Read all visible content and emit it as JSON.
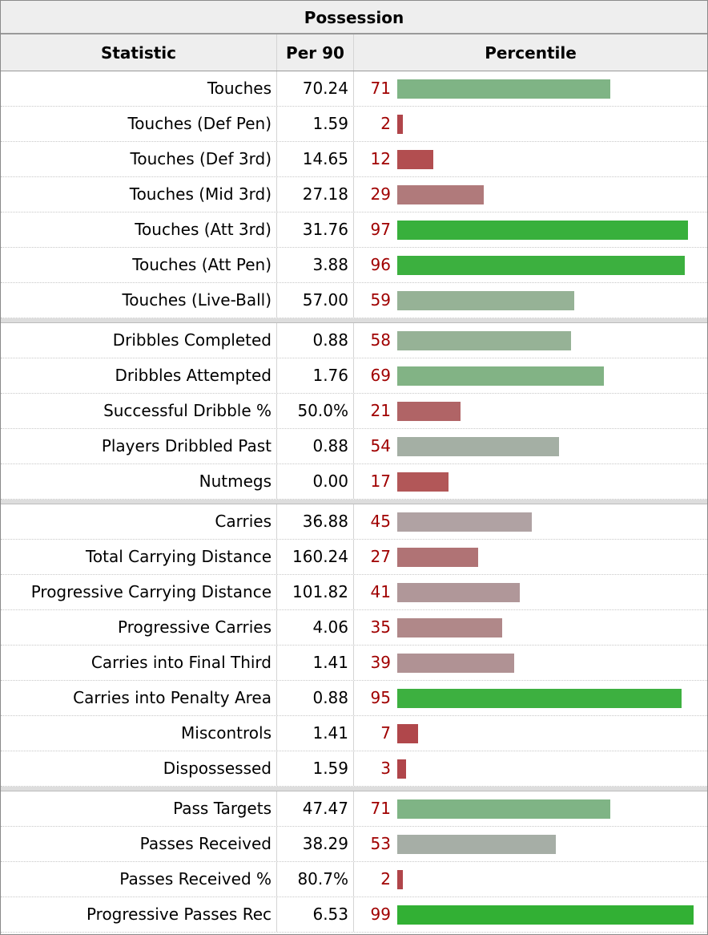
{
  "table": {
    "caption": "Possession",
    "headers": {
      "statistic": "Statistic",
      "per90": "Per 90",
      "percentile": "Percentile"
    },
    "groups": [
      [
        {
          "stat": "Touches",
          "per90": "70.24",
          "pct": "71",
          "percentile": 71,
          "color": "#7fb485"
        },
        {
          "stat": "Touches (Def Pen)",
          "per90": "1.59",
          "pct": "2",
          "percentile": 2,
          "color": "#b0454a"
        },
        {
          "stat": "Touches (Def 3rd)",
          "per90": "14.65",
          "pct": "12",
          "percentile": 12,
          "color": "#b24e50"
        },
        {
          "stat": "Touches (Mid 3rd)",
          "per90": "27.18",
          "pct": "29",
          "percentile": 29,
          "color": "#b07a7b"
        },
        {
          "stat": "Touches (Att 3rd)",
          "per90": "31.76",
          "pct": "97",
          "percentile": 97,
          "color": "#38b03c"
        },
        {
          "stat": "Touches (Att Pen)",
          "per90": "3.88",
          "pct": "96",
          "percentile": 96,
          "color": "#3cb03f"
        },
        {
          "stat": "Touches (Live-Ball)",
          "per90": "57.00",
          "pct": "59",
          "percentile": 59,
          "color": "#96b296"
        }
      ],
      [
        {
          "stat": "Dribbles Completed",
          "per90": "0.88",
          "pct": "58",
          "percentile": 58,
          "color": "#96b296"
        },
        {
          "stat": "Dribbles Attempted",
          "per90": "1.76",
          "pct": "69",
          "percentile": 69,
          "color": "#82b385"
        },
        {
          "stat": "Successful Dribble %",
          "per90": "50.0%",
          "pct": "21",
          "percentile": 21,
          "color": "#b06466"
        },
        {
          "stat": "Players Dribbled Past",
          "per90": "0.88",
          "pct": "54",
          "percentile": 54,
          "color": "#a4afa4"
        },
        {
          "stat": "Nutmegs",
          "per90": "0.00",
          "pct": "17",
          "percentile": 17,
          "color": "#b25758"
        }
      ],
      [
        {
          "stat": "Carries",
          "per90": "36.88",
          "pct": "45",
          "percentile": 45,
          "color": "#b0a2a3"
        },
        {
          "stat": "Total Carrying Distance",
          "per90": "160.24",
          "pct": "27",
          "percentile": 27,
          "color": "#b07375"
        },
        {
          "stat": "Progressive Carrying Distance",
          "per90": "101.82",
          "pct": "41",
          "percentile": 41,
          "color": "#b09799"
        },
        {
          "stat": "Progressive Carries",
          "per90": "4.06",
          "pct": "35",
          "percentile": 35,
          "color": "#b08889"
        },
        {
          "stat": "Carries into Final Third",
          "per90": "1.41",
          "pct": "39",
          "percentile": 39,
          "color": "#b09294"
        },
        {
          "stat": "Carries into Penalty Area",
          "per90": "0.88",
          "pct": "95",
          "percentile": 95,
          "color": "#3db040"
        },
        {
          "stat": "Miscontrols",
          "per90": "1.41",
          "pct": "7",
          "percentile": 7,
          "color": "#b0474b"
        },
        {
          "stat": "Dispossessed",
          "per90": "1.59",
          "pct": "3",
          "percentile": 3,
          "color": "#b0454a"
        }
      ],
      [
        {
          "stat": "Pass Targets",
          "per90": "47.47",
          "pct": "71",
          "percentile": 71,
          "color": "#7fb485"
        },
        {
          "stat": "Passes Received",
          "per90": "38.29",
          "pct": "53",
          "percentile": 53,
          "color": "#a6aea6"
        },
        {
          "stat": "Passes Received %",
          "per90": "80.7%",
          "pct": "2",
          "percentile": 2,
          "color": "#b0454a"
        },
        {
          "stat": "Progressive Passes Rec",
          "per90": "6.53",
          "pct": "99",
          "percentile": 99,
          "color": "#32b034"
        }
      ]
    ]
  }
}
